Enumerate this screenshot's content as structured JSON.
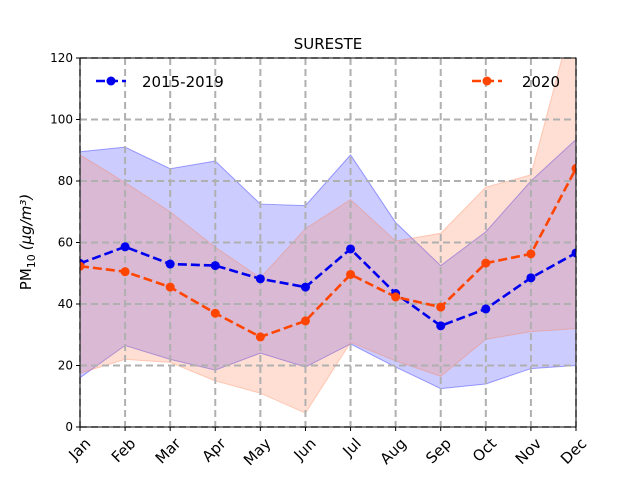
{
  "chart_data": {
    "type": "line",
    "title": "SURESTE",
    "ylabel_main": "PM",
    "ylabel_sub": "10",
    "ylabel_unit": "(μg/m³)",
    "ylim": [
      0,
      120
    ],
    "yticks": [
      "0",
      "20",
      "40",
      "60",
      "80",
      "100",
      "120"
    ],
    "categories": [
      "Jan",
      "Feb",
      "Mar",
      "Apr",
      "May",
      "Jun",
      "Jul",
      "Aug",
      "Sep",
      "Oct",
      "Nov",
      "Dec"
    ],
    "grid": true,
    "legend": [
      "top-left",
      "top-right"
    ],
    "series": [
      {
        "name": "2015-2019",
        "color": "#0000ee",
        "band_color": "#0000ff",
        "values": [
          53.2,
          58.6,
          53.0,
          52.5,
          48.2,
          45.5,
          57.9,
          43.4,
          32.9,
          38.4,
          48.5,
          56.6
        ],
        "upper": [
          89.5,
          91.0,
          84.0,
          86.5,
          72.5,
          72.0,
          88.5,
          66.5,
          52.5,
          63.5,
          80.0,
          93.5
        ],
        "lower": [
          16.0,
          26.5,
          22.0,
          18.5,
          24.0,
          19.5,
          27.0,
          19.5,
          12.5,
          14.0,
          19.0,
          20.0
        ]
      },
      {
        "name": "2020",
        "color": "#ff4500",
        "band_color": "#ff7f50",
        "values": [
          52.3,
          50.5,
          45.5,
          37.0,
          29.3,
          34.5,
          49.6,
          42.3,
          39.0,
          53.3,
          56.3,
          84.1
        ],
        "upper": [
          88.5,
          79.5,
          70.0,
          58.5,
          48.5,
          64.5,
          74.0,
          60.5,
          63.0,
          78.0,
          82.0,
          137.0
        ],
        "lower": [
          17.5,
          22.0,
          21.0,
          15.0,
          11.0,
          4.5,
          27.5,
          21.5,
          16.5,
          28.5,
          31.0,
          32.0
        ]
      }
    ]
  }
}
